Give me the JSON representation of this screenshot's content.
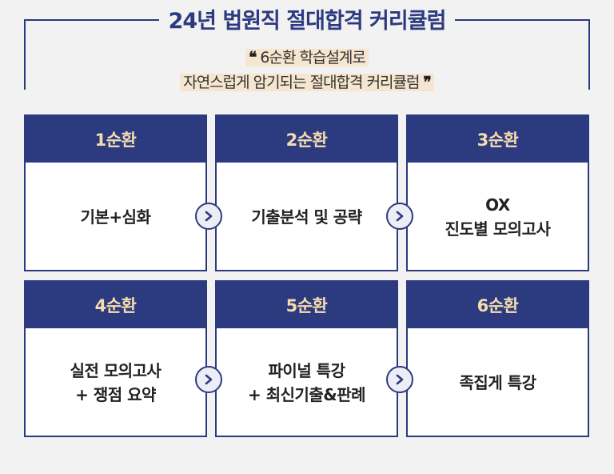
{
  "header": {
    "title": "24년 법원직 절대합격 커리큘럼",
    "subtitle_line1": "6순환 학습설계로",
    "subtitle_line2": "자연스럽게 암기되는 절대합격 커리큘럼",
    "open_quote": "❝",
    "close_quote": "❞"
  },
  "cycles": [
    {
      "label": "1순환",
      "lines": [
        "기본+심화"
      ]
    },
    {
      "label": "2순환",
      "lines": [
        "기출분석 및 공략"
      ]
    },
    {
      "label": "3순환",
      "lines": [
        "OX",
        "진도별 모의고사"
      ]
    },
    {
      "label": "4순환",
      "lines": [
        "실전 모의고사",
        "+ 쟁점 요약"
      ]
    },
    {
      "label": "5순환",
      "lines": [
        "파이널 특강",
        "+ 최신기출&판례"
      ]
    },
    {
      "label": "6순환",
      "lines": [
        "족집게 특강"
      ]
    }
  ],
  "colors": {
    "navy": "#2c3a7f",
    "header_text": "#f4dcae",
    "highlight": "#f6e6cf"
  },
  "icons": {
    "arrow": "chevron-right-icon"
  }
}
